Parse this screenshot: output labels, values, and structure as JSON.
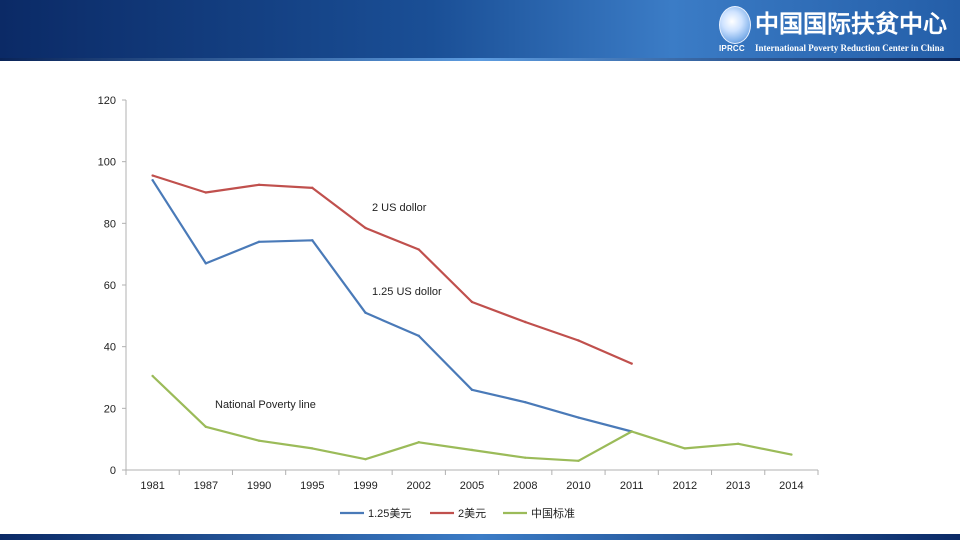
{
  "header": {
    "org_name_cn": "中国国际扶贫中心",
    "org_name_en": "International Poverty Reduction Center in China",
    "logo_abbr": "IPRCC",
    "logo_icon": "globe-logo-icon"
  },
  "colors": {
    "banner": "#1a4f96",
    "axis": "#b0b0b0",
    "text": "#222222"
  },
  "chart_data": {
    "type": "line",
    "title": "",
    "xlabel": "",
    "ylabel": "",
    "categories": [
      "1981",
      "1987",
      "1990",
      "1995",
      "1999",
      "2002",
      "2005",
      "2008",
      "2010",
      "2011",
      "2012",
      "2013",
      "2014"
    ],
    "ylim": [
      0,
      120
    ],
    "yticks": [
      0,
      20,
      40,
      60,
      80,
      100,
      120
    ],
    "grid": false,
    "legend_position": "bottom",
    "series": [
      {
        "name": "1.25美元",
        "color": "#4a7ab8",
        "values": [
          94,
          67,
          74,
          74.5,
          51,
          43.5,
          26,
          22,
          17,
          12.5,
          null,
          null,
          null
        ]
      },
      {
        "name": "2美元",
        "color": "#c0504d",
        "values": [
          95.5,
          90,
          92.5,
          91.5,
          78.5,
          71.5,
          54.5,
          48,
          42,
          34.5,
          null,
          null,
          null
        ]
      },
      {
        "name": "中国标准",
        "color": "#9bbb59",
        "values": [
          30.5,
          14,
          9.5,
          7,
          3.5,
          9,
          6.5,
          4,
          3,
          12.5,
          7,
          8.5,
          5
        ]
      }
    ],
    "annotations": [
      {
        "text": "2 US dollor",
        "series": 1,
        "at": 4
      },
      {
        "text": "1.25 US dollor",
        "series": 0,
        "at": 4
      },
      {
        "text": "National Poverty line",
        "series": 2,
        "at": 1
      }
    ]
  }
}
